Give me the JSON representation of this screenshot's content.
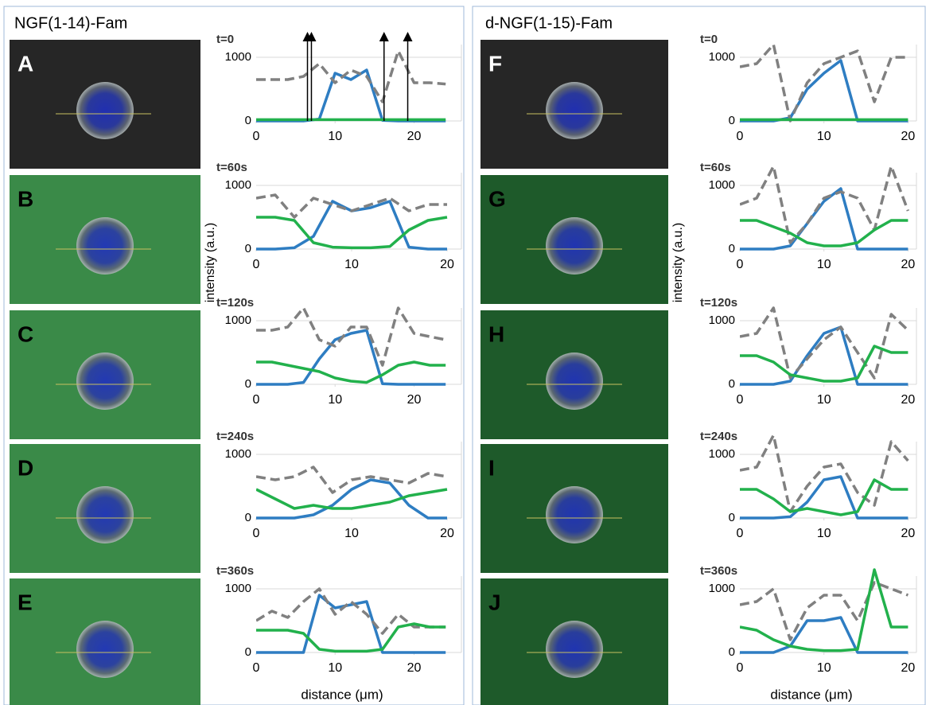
{
  "panels": [
    {
      "title": "NGF(1-14)-Fam",
      "letters": [
        "A",
        "B",
        "C",
        "D",
        "E"
      ],
      "y_label": "intensity (a.u.)",
      "x_label": "distance (μm)"
    },
    {
      "title": "d-NGF(1-15)-Fam",
      "letters": [
        "F",
        "G",
        "H",
        "I",
        "J"
      ],
      "y_label": "intensity (a.u.)",
      "x_label": "distance (μm)"
    }
  ],
  "chart_data": [
    {
      "type": "line",
      "title": "t=0",
      "x": [
        0,
        2,
        4,
        6,
        8,
        10,
        12,
        14,
        16,
        18,
        20,
        22,
        24
      ],
      "xlim": [
        0,
        26
      ],
      "xticks": [
        0,
        10,
        20
      ],
      "ylim": [
        0,
        1200
      ],
      "yticks": [
        0,
        1000
      ],
      "grid": true,
      "arrows_x": [
        6.5,
        7,
        16.2,
        19.2
      ],
      "series": [
        {
          "color": "#2e7dc2",
          "values": [
            0,
            0,
            0,
            0,
            30,
            750,
            650,
            800,
            10,
            0,
            0,
            0,
            0
          ]
        },
        {
          "color": "#808080",
          "dashed": true,
          "values": [
            650,
            650,
            650,
            700,
            900,
            600,
            800,
            700,
            300,
            1100,
            600,
            600,
            580
          ]
        },
        {
          "color": "#22b14c",
          "values": [
            20,
            20,
            20,
            20,
            20,
            20,
            20,
            20,
            20,
            20,
            20,
            20,
            20
          ]
        }
      ]
    },
    {
      "type": "line",
      "title": "t=60s",
      "x": [
        0,
        2,
        4,
        6,
        8,
        10,
        12,
        14,
        16,
        18,
        20
      ],
      "xlim": [
        0,
        21.5
      ],
      "xticks": [
        0,
        10,
        20
      ],
      "ylim": [
        0,
        1200
      ],
      "yticks": [
        0,
        1000
      ],
      "grid": true,
      "series": [
        {
          "color": "#2e7dc2",
          "values": [
            0,
            0,
            20,
            200,
            750,
            600,
            650,
            750,
            30,
            0,
            0
          ]
        },
        {
          "color": "#808080",
          "dashed": true,
          "values": [
            800,
            850,
            500,
            800,
            700,
            600,
            700,
            800,
            600,
            700,
            700
          ]
        },
        {
          "color": "#22b14c",
          "values": [
            500,
            500,
            450,
            100,
            30,
            20,
            20,
            40,
            300,
            450,
            500
          ]
        }
      ]
    },
    {
      "type": "line",
      "title": "t=120s",
      "x": [
        0,
        2,
        4,
        6,
        8,
        10,
        12,
        14,
        16,
        18,
        20,
        22,
        24
      ],
      "xlim": [
        0,
        26
      ],
      "xticks": [
        0,
        10,
        20
      ],
      "ylim": [
        0,
        1200
      ],
      "yticks": [
        0,
        1000
      ],
      "grid": true,
      "series": [
        {
          "color": "#2e7dc2",
          "values": [
            0,
            0,
            0,
            30,
            400,
            700,
            800,
            850,
            10,
            0,
            0,
            0,
            0
          ]
        },
        {
          "color": "#808080",
          "dashed": true,
          "values": [
            850,
            850,
            900,
            1200,
            700,
            600,
            900,
            900,
            300,
            1200,
            800,
            750,
            700
          ]
        },
        {
          "color": "#22b14c",
          "values": [
            350,
            350,
            300,
            250,
            200,
            100,
            50,
            30,
            150,
            300,
            350,
            300,
            300
          ]
        }
      ]
    },
    {
      "type": "line",
      "title": "t=240s",
      "x": [
        0,
        2,
        4,
        6,
        8,
        10,
        12,
        14,
        16,
        18,
        20
      ],
      "xlim": [
        0,
        21.5
      ],
      "xticks": [
        0,
        10,
        20
      ],
      "ylim": [
        0,
        1200
      ],
      "yticks": [
        0,
        1000
      ],
      "grid": true,
      "series": [
        {
          "color": "#2e7dc2",
          "values": [
            0,
            0,
            0,
            50,
            200,
            450,
            600,
            550,
            200,
            0,
            0
          ]
        },
        {
          "color": "#808080",
          "dashed": true,
          "values": [
            650,
            600,
            650,
            800,
            400,
            600,
            650,
            600,
            550,
            700,
            650
          ]
        },
        {
          "color": "#22b14c",
          "values": [
            450,
            300,
            150,
            200,
            150,
            150,
            200,
            250,
            350,
            400,
            450
          ]
        }
      ]
    },
    {
      "type": "line",
      "title": "t=360s",
      "x": [
        0,
        2,
        4,
        6,
        8,
        10,
        12,
        14,
        16,
        18,
        20,
        22,
        24
      ],
      "xlim": [
        0,
        26
      ],
      "xticks": [
        0,
        10,
        20
      ],
      "ylim": [
        0,
        1200
      ],
      "yticks": [
        0,
        1000
      ],
      "grid": true,
      "series": [
        {
          "color": "#2e7dc2",
          "values": [
            0,
            0,
            0,
            0,
            900,
            700,
            750,
            800,
            0,
            0,
            0,
            0,
            0
          ]
        },
        {
          "color": "#808080",
          "dashed": true,
          "values": [
            500,
            650,
            550,
            800,
            1000,
            600,
            800,
            600,
            300,
            600,
            400,
            400,
            400
          ]
        },
        {
          "color": "#22b14c",
          "values": [
            350,
            350,
            350,
            300,
            50,
            20,
            20,
            20,
            50,
            400,
            450,
            400,
            400
          ]
        }
      ]
    },
    {
      "type": "line",
      "title": "t=0",
      "x": [
        0,
        2,
        4,
        6,
        8,
        10,
        12,
        14,
        16,
        18,
        20
      ],
      "xlim": [
        0,
        21
      ],
      "xticks": [
        0,
        10,
        20
      ],
      "ylim": [
        0,
        1200
      ],
      "yticks": [
        0,
        1000
      ],
      "grid": true,
      "series": [
        {
          "color": "#2e7dc2",
          "values": [
            0,
            0,
            0,
            50,
            500,
            750,
            950,
            0,
            0,
            0,
            0
          ]
        },
        {
          "color": "#808080",
          "dashed": true,
          "values": [
            850,
            900,
            1200,
            0,
            600,
            900,
            1000,
            1100,
            300,
            1000,
            1000
          ]
        },
        {
          "color": "#22b14c",
          "values": [
            20,
            20,
            20,
            20,
            20,
            20,
            20,
            20,
            20,
            20,
            20
          ]
        }
      ]
    },
    {
      "type": "line",
      "title": "t=60s",
      "x": [
        0,
        2,
        4,
        6,
        8,
        10,
        12,
        14,
        16,
        18,
        20
      ],
      "xlim": [
        0,
        21
      ],
      "xticks": [
        0,
        10,
        20
      ],
      "ylim": [
        0,
        1200
      ],
      "yticks": [
        0,
        1000
      ],
      "grid": true,
      "series": [
        {
          "color": "#2e7dc2",
          "values": [
            0,
            0,
            0,
            50,
            400,
            750,
            950,
            0,
            0,
            0,
            0
          ]
        },
        {
          "color": "#808080",
          "dashed": true,
          "values": [
            700,
            800,
            1300,
            100,
            400,
            800,
            900,
            800,
            300,
            1300,
            600
          ]
        },
        {
          "color": "#22b14c",
          "values": [
            450,
            450,
            350,
            250,
            100,
            50,
            50,
            100,
            300,
            450,
            450
          ]
        }
      ]
    },
    {
      "type": "line",
      "title": "t=120s",
      "x": [
        0,
        2,
        4,
        6,
        8,
        10,
        12,
        14,
        16,
        18,
        20
      ],
      "xlim": [
        0,
        21
      ],
      "xticks": [
        0,
        10,
        20
      ],
      "ylim": [
        0,
        1200
      ],
      "yticks": [
        0,
        1000
      ],
      "grid": true,
      "series": [
        {
          "color": "#2e7dc2",
          "values": [
            0,
            0,
            0,
            50,
            450,
            800,
            900,
            0,
            0,
            0,
            0
          ]
        },
        {
          "color": "#808080",
          "dashed": true,
          "values": [
            750,
            800,
            1200,
            100,
            400,
            700,
            900,
            500,
            100,
            1100,
            850
          ]
        },
        {
          "color": "#22b14c",
          "values": [
            450,
            450,
            350,
            150,
            100,
            50,
            50,
            100,
            600,
            500,
            500
          ]
        }
      ]
    },
    {
      "type": "line",
      "title": "t=240s",
      "x": [
        0,
        2,
        4,
        6,
        8,
        10,
        12,
        14,
        16,
        18,
        20
      ],
      "xlim": [
        0,
        21
      ],
      "xticks": [
        0,
        10,
        20
      ],
      "ylim": [
        0,
        1200
      ],
      "yticks": [
        0,
        1000
      ],
      "grid": true,
      "series": [
        {
          "color": "#2e7dc2",
          "values": [
            0,
            0,
            0,
            20,
            250,
            600,
            650,
            0,
            0,
            0,
            0
          ]
        },
        {
          "color": "#808080",
          "dashed": true,
          "values": [
            750,
            800,
            1300,
            100,
            500,
            800,
            850,
            400,
            200,
            1200,
            900
          ]
        },
        {
          "color": "#22b14c",
          "values": [
            450,
            450,
            300,
            100,
            150,
            100,
            50,
            100,
            600,
            450,
            450
          ]
        }
      ]
    },
    {
      "type": "line",
      "title": "t=360s",
      "x": [
        0,
        2,
        4,
        6,
        8,
        10,
        12,
        14,
        16,
        18,
        20
      ],
      "xlim": [
        0,
        21
      ],
      "xticks": [
        0,
        10,
        20
      ],
      "ylim": [
        0,
        1200
      ],
      "yticks": [
        0,
        1000
      ],
      "grid": true,
      "series": [
        {
          "color": "#2e7dc2",
          "values": [
            0,
            0,
            0,
            100,
            500,
            500,
            550,
            0,
            0,
            0,
            0
          ]
        },
        {
          "color": "#808080",
          "dashed": true,
          "values": [
            750,
            800,
            1000,
            200,
            700,
            900,
            900,
            500,
            1100,
            1000,
            900
          ]
        },
        {
          "color": "#22b14c",
          "values": [
            400,
            350,
            200,
            100,
            50,
            30,
            30,
            50,
            1300,
            400,
            400
          ]
        }
      ]
    }
  ]
}
